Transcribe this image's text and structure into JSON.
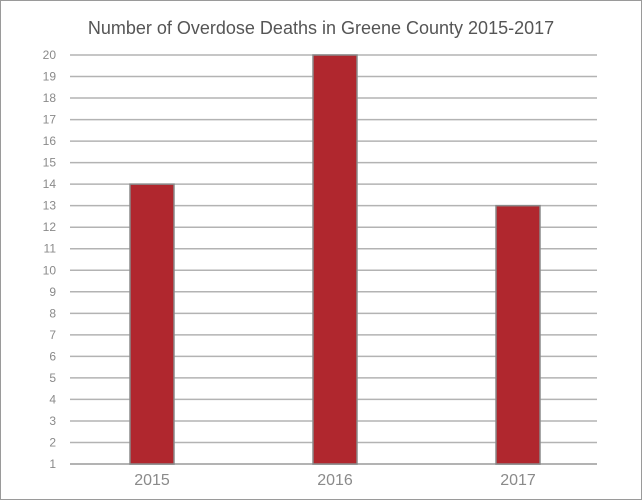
{
  "chart_data": {
    "type": "bar",
    "title": "Number of Overdose Deaths in Greene County 2015-2017",
    "xlabel": "",
    "ylabel": "",
    "categories": [
      "2015",
      "2016",
      "2017"
    ],
    "values": [
      14,
      20,
      13
    ],
    "ylim": [
      1,
      20
    ],
    "yticks": [
      1,
      2,
      3,
      4,
      5,
      6,
      7,
      8,
      9,
      10,
      11,
      12,
      13,
      14,
      15,
      16,
      17,
      18,
      19,
      20
    ],
    "grid": true,
    "legend": "none",
    "colors": {
      "bar": "#b0272e",
      "bar_edge": "#8a8a8a",
      "grid": "#b3b3b3",
      "text": "#8a8a8a"
    }
  }
}
